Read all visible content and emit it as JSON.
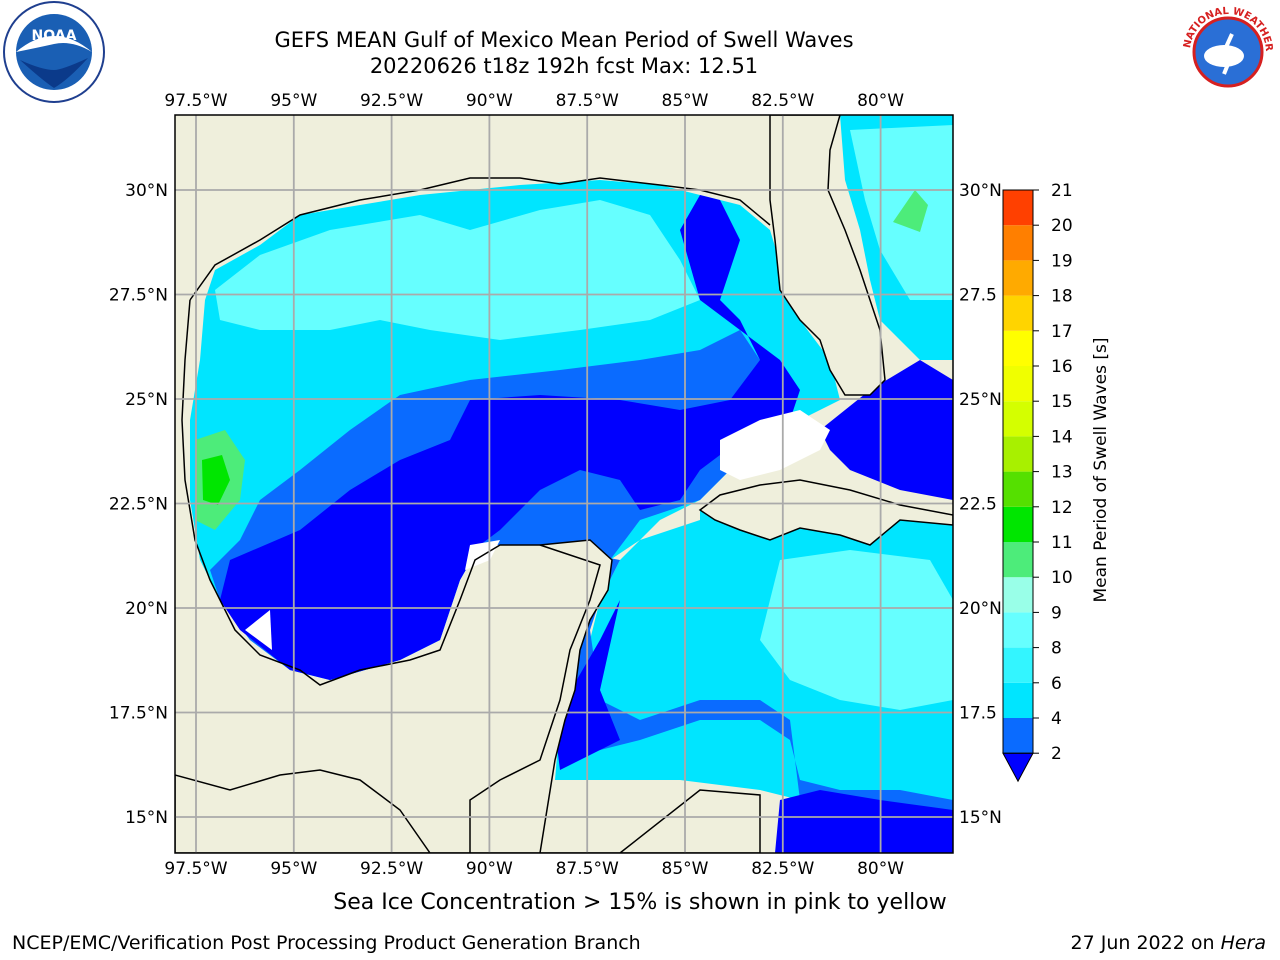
{
  "title_line1": "GEFS MEAN Gulf of Mexico Mean Period of Swell Waves",
  "title_line2": "20220626 t18z 192h fcst   Max: 12.51",
  "logos": {
    "left_icon": "noaa-logo-icon",
    "right_icon": "nws-logo-icon",
    "left_text": "NOAA",
    "right_text": "NATIONAL WEATHER SERVICE"
  },
  "axes": {
    "lon_labels": [
      "97.5°W",
      "95°W",
      "92.5°W",
      "90°W",
      "87.5°W",
      "85°W",
      "82.5°W",
      "80°W"
    ],
    "lat_labels": [
      "30°N",
      "27.5°N",
      "25°N",
      "22.5°N",
      "20°N",
      "17.5°N",
      "15°N"
    ],
    "lat_labels_right": [
      "30°N",
      "27.5",
      "25°N",
      "22.5",
      "20°N",
      "17.5",
      "15°N"
    ]
  },
  "colorbar": {
    "label": "Mean Period of Swell Waves [s]",
    "levels": [
      "2",
      "4",
      "6",
      "8",
      "9",
      "10",
      "11",
      "12",
      "13",
      "14",
      "15",
      "16",
      "17",
      "18",
      "19",
      "20",
      "21"
    ],
    "colors": [
      "#0a6bff",
      "#00e5ff",
      "#33f5ff",
      "#66ffff",
      "#99ffe8",
      "#4dec7a",
      "#00e600",
      "#55e000",
      "#a8f000",
      "#d4ff00",
      "#f0ff00",
      "#ffff00",
      "#ffd400",
      "#ffaa00",
      "#ff7f00",
      "#ff4000",
      "#ff0000"
    ],
    "extend_color": "#0000ff"
  },
  "caption": "Sea Ice Concentration > 15% is shown in pink to yellow",
  "credit_left": "NCEP/EMC/Verification Post Processing Product Generation Branch",
  "credit_right_prefix": "27 Jun 2022 on ",
  "credit_right_host": "Hera",
  "colors": {
    "land": "#efefdc",
    "ocean_deep": "#0000ff",
    "ocean_mid": "#0a6bff",
    "ocean_cyan": "#00e5ff",
    "ocean_light": "#66ffff",
    "grid": "#aaaaaa"
  }
}
